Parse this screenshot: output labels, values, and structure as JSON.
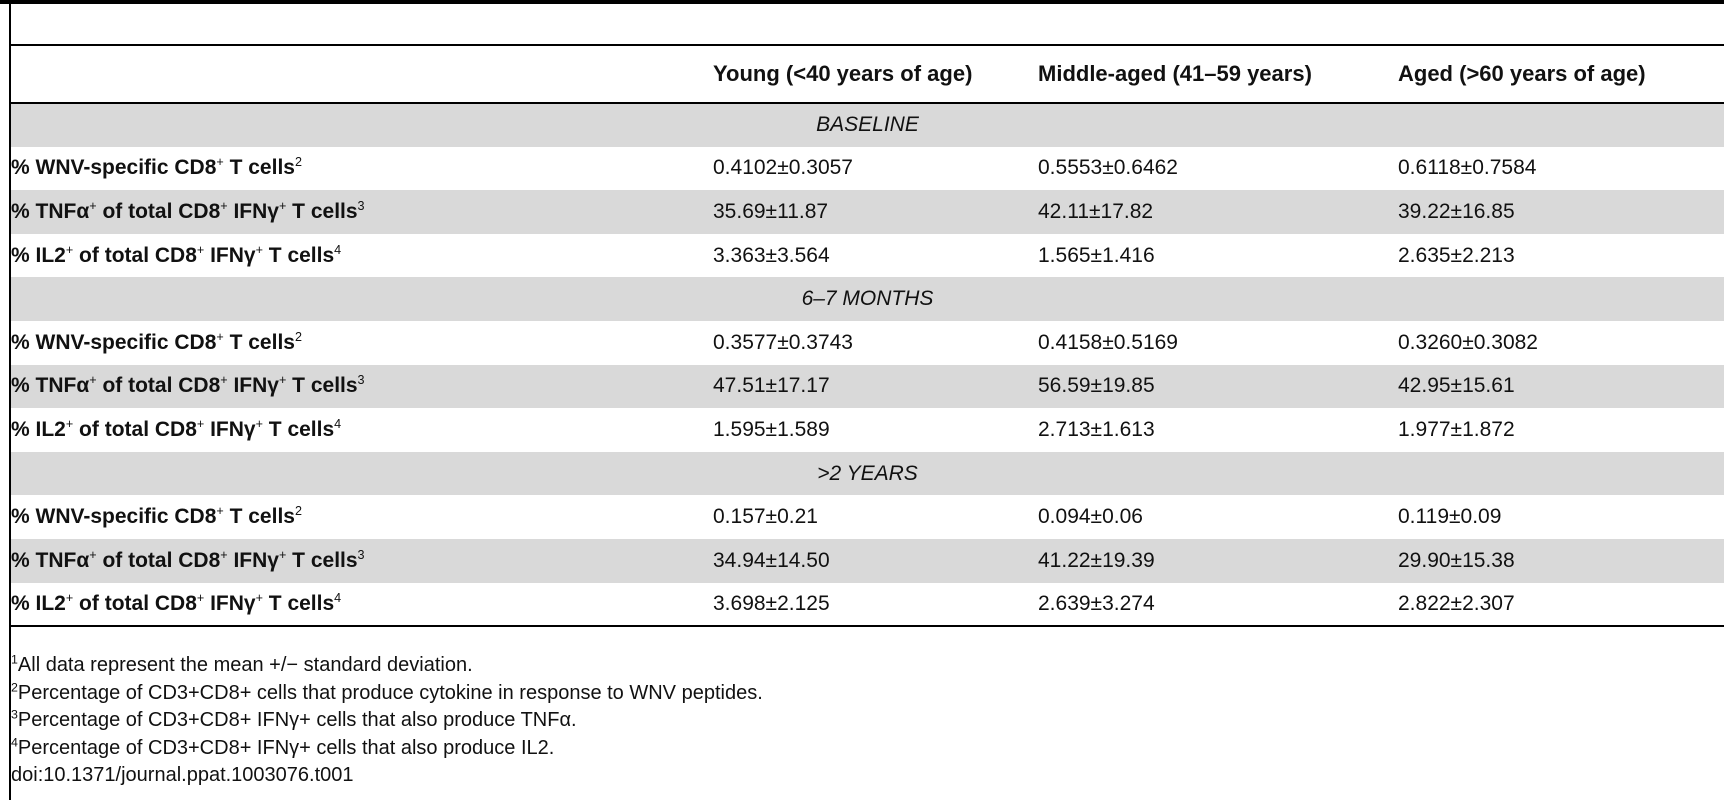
{
  "table": {
    "columns": [
      "",
      "Young (<40 years of age)",
      "Middle-aged (41–59 years)",
      "Aged (>60 years of age)"
    ],
    "sections": [
      {
        "title": "BASELINE",
        "rows": [
          {
            "label_pre": "% WNV-specific CD8",
            "label_sup1": "+",
            "label_mid": " T cells",
            "label_sup2": "2",
            "label_mid2": "",
            "label_sup3": "",
            "label_post": "",
            "values": [
              "0.4102±0.3057",
              "0.5553±0.6462",
              "0.6118±0.7584"
            ]
          },
          {
            "label_pre": "% TNFα",
            "label_sup1": "+",
            "label_mid": " of total CD8",
            "label_sup2": "+",
            "label_mid2": " IFNγ",
            "label_sup3": "+",
            "label_post": " T cells",
            "label_note": "3",
            "values": [
              "35.69±11.87",
              "42.11±17.82",
              "39.22±16.85"
            ]
          },
          {
            "label_pre": "% IL2",
            "label_sup1": "+",
            "label_mid": " of total CD8",
            "label_sup2": "+",
            "label_mid2": " IFNγ",
            "label_sup3": "+",
            "label_post": " T cells",
            "label_note": "4",
            "values": [
              "3.363±3.564",
              "1.565±1.416",
              "2.635±2.213"
            ]
          }
        ]
      },
      {
        "title": "6–7 MONTHS",
        "rows": [
          {
            "values": [
              "0.3577±0.3743",
              "0.4158±0.5169",
              "0.3260±0.3082"
            ]
          },
          {
            "values": [
              "47.51±17.17",
              "56.59±19.85",
              "42.95±15.61"
            ]
          },
          {
            "values": [
              "1.595±1.589",
              "2.713±1.613",
              "1.977±1.872"
            ]
          }
        ]
      },
      {
        "title": ">2 YEARS",
        "rows": [
          {
            "values": [
              "0.157±0.21",
              "0.094±0.06",
              "0.119±0.09"
            ]
          },
          {
            "values": [
              "34.94±14.50",
              "41.22±19.39",
              "29.90±15.38"
            ]
          },
          {
            "values": [
              "3.698±2.125",
              "2.639±3.274",
              "2.822±2.307"
            ]
          }
        ]
      }
    ],
    "row_labels": {
      "wnv": {
        "pre": "% WNV-specific CD8",
        "sup_a": "+",
        "mid": " T cells",
        "note": "2"
      },
      "tnf": {
        "pre": "% TNFα",
        "sup_a": "+",
        "mid": " of total CD8",
        "sup_b": "+",
        "mid2": " IFNγ",
        "sup_c": "+",
        "post": " T cells",
        "note": "3"
      },
      "il2": {
        "pre": "% IL2",
        "sup_a": "+",
        "mid": " of total CD8",
        "sup_b": "+",
        "mid2": " IFNγ",
        "sup_c": "+",
        "post": " T cells",
        "note": "4"
      }
    }
  },
  "footnotes": [
    {
      "mark": "1",
      "text": "All data represent the mean +/− standard deviation."
    },
    {
      "mark": "2",
      "text": "Percentage of CD3+CD8+ cells that produce cytokine in response to WNV peptides."
    },
    {
      "mark": "3",
      "text": "Percentage of CD3+CD8+ IFNγ+ cells that also produce TNFα."
    },
    {
      "mark": "4",
      "text": "Percentage of CD3+CD8+ IFNγ+ cells that also produce IL2."
    }
  ],
  "doi": "doi:10.1371/journal.ppat.1003076.t001"
}
